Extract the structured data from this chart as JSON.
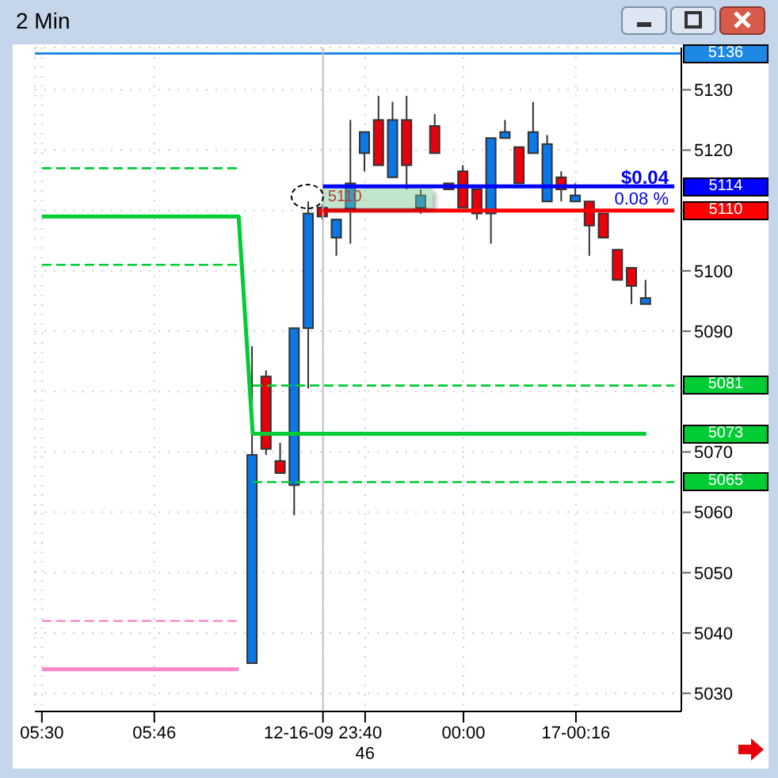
{
  "chart_data": {
    "type": "candlestick",
    "title": "2 Min",
    "categories": [
      "05:30",
      null,
      null,
      null,
      null,
      null,
      null,
      null,
      "05:46",
      null,
      null,
      null,
      null,
      null,
      null,
      null,
      null,
      null,
      null,
      null,
      "12-16-09 23:40",
      null,
      null,
      "46",
      null,
      null,
      null,
      null,
      null,
      null,
      "00:00",
      null,
      null,
      null,
      null,
      null,
      null,
      null,
      "17-00:16",
      null,
      null,
      null,
      null,
      null,
      null,
      null
    ],
    "ohlc": [
      null,
      null,
      null,
      null,
      null,
      null,
      null,
      null,
      null,
      null,
      null,
      null,
      null,
      null,
      null,
      [
        5035,
        5087.5,
        5035,
        5069.5
      ],
      [
        5082.5,
        5083.5,
        5069.5,
        5070.5
      ],
      [
        5068.5,
        5071.5,
        5066.5,
        5066.5
      ],
      [
        5064.5,
        5090.5,
        5059.5,
        5090.5
      ],
      [
        5090.5,
        5111.5,
        5080.5,
        5109.5
      ],
      [
        5110.5,
        5111,
        5108.5,
        5109
      ],
      [
        5105.5,
        5108.5,
        5102.5,
        5108.5
      ],
      [
        5110,
        5125,
        5104.5,
        5114.5
      ],
      [
        5119.5,
        5123,
        5116.5,
        5123
      ],
      [
        5125,
        5129,
        5117.5,
        5117.5
      ],
      [
        5115.5,
        5128,
        5115.5,
        5125
      ],
      [
        5125,
        5129,
        5113.5,
        5117.5
      ],
      [
        5110.5,
        5113.5,
        5109.5,
        5112.5
      ],
      [
        5124,
        5126,
        5119.5,
        5119.5
      ],
      [
        5114.5,
        5114.5,
        5113.5,
        5113.5
      ],
      [
        5116.5,
        5117.5,
        5110.5,
        5110.5
      ],
      [
        5113.5,
        5113.5,
        5108.5,
        5109.5
      ],
      [
        5109.5,
        5122,
        5104.5,
        5122
      ],
      [
        5122,
        5125,
        5122,
        5123
      ],
      [
        5120.5,
        5120.5,
        5114.5,
        5114.5
      ],
      [
        5119.5,
        5128,
        5119.5,
        5123
      ],
      [
        5111.5,
        5122.5,
        5111.5,
        5121
      ],
      [
        5115.5,
        5116.5,
        5111.5,
        5113.5
      ],
      [
        5111.5,
        5114.5,
        5111.5,
        5112.5
      ],
      [
        5111.5,
        5111.5,
        5102.5,
        5107.5
      ],
      [
        5109.5,
        5109.5,
        5105.5,
        5105.5
      ],
      [
        5103.5,
        5103.5,
        5098.5,
        5098.5
      ],
      [
        5100.5,
        5100.5,
        5094.5,
        5097.5
      ],
      [
        5094.5,
        5098.5,
        5094.5,
        5095.5
      ],
      null,
      null
    ],
    "colors": [
      null,
      null,
      null,
      null,
      null,
      null,
      null,
      null,
      null,
      null,
      null,
      null,
      null,
      null,
      null,
      "#0a78e6",
      "#e8000b",
      "#e8000b",
      "#0a78e6",
      "#0a78e6",
      "#e8000b",
      "#0a78e6",
      "#0a78e6",
      "#0a78e6",
      "#e8000b",
      "#0a78e6",
      "#e8000b",
      "#0a78e6",
      "#e8000b",
      "#e8000b",
      "#e8000b",
      "#e8000b",
      "#0a78e6",
      "#0a78e6",
      "#e8000b",
      "#0a78e6",
      "#0a78e6",
      "#e8000b",
      "#0a78e6",
      "#e8000b",
      "#e8000b",
      "#e8000b",
      "#e8000b",
      "#0a78e6",
      null,
      null
    ],
    "series": [
      {
        "type": "line",
        "color": "#00cc33",
        "line_style": "solid",
        "values": [
          5109,
          5109,
          5109,
          5109,
          5109,
          5109,
          5109,
          5109,
          5109,
          5109,
          5109,
          5109,
          5109,
          5109,
          5109,
          5073,
          5073,
          5073,
          5073,
          5073,
          5073,
          5073,
          5073,
          5073,
          5073,
          5073,
          5073,
          5073,
          5073,
          5073,
          5073,
          5073,
          5073,
          5073,
          5073,
          5073,
          5073,
          5073,
          5073,
          5073,
          5073,
          5073,
          5073,
          5073,
          null,
          null
        ]
      },
      {
        "type": "line",
        "color": "#00cc33",
        "line_style": "dashed",
        "values": [
          5117,
          5117,
          5117,
          5117,
          5117,
          5117,
          5117,
          5117,
          5117,
          5117,
          5117,
          5117,
          5117,
          5117,
          5117,
          null,
          null,
          null,
          null,
          null,
          null,
          null,
          null,
          null,
          null,
          null,
          null,
          null,
          null,
          null,
          null,
          null,
          null,
          null,
          null,
          null,
          null,
          null,
          null,
          null,
          null,
          null,
          null,
          null,
          null,
          null
        ]
      },
      {
        "type": "line",
        "color": "#00cc33",
        "line_style": "dashed",
        "values": [
          5101,
          5101,
          5101,
          5101,
          5101,
          5101,
          5101,
          5101,
          5101,
          5101,
          5101,
          5101,
          5101,
          5101,
          5101,
          null,
          null,
          null,
          null,
          null,
          null,
          null,
          null,
          null,
          null,
          null,
          null,
          null,
          null,
          null,
          null,
          null,
          null,
          null,
          null,
          null,
          null,
          null,
          null,
          null,
          null,
          null,
          null,
          null,
          null,
          null
        ]
      },
      {
        "type": "line",
        "color": "#00cc33",
        "line_style": "dashed",
        "values": [
          null,
          null,
          null,
          null,
          null,
          null,
          null,
          null,
          null,
          null,
          null,
          null,
          null,
          null,
          null,
          5081,
          5081,
          5081,
          5081,
          5081,
          5081,
          5081,
          5081,
          5081,
          5081,
          5081,
          5081,
          5081,
          5081,
          5081,
          5081,
          5081,
          5081,
          5081,
          5081,
          5081,
          5081,
          5081,
          5081,
          5081,
          5081,
          5081,
          5081,
          5081,
          5081,
          5081
        ]
      },
      {
        "type": "line",
        "color": "#00cc33",
        "line_style": "dashed",
        "values": [
          null,
          null,
          null,
          null,
          null,
          null,
          null,
          null,
          null,
          null,
          null,
          null,
          null,
          null,
          null,
          5065,
          5065,
          5065,
          5065,
          5065,
          5065,
          5065,
          5065,
          5065,
          5065,
          5065,
          5065,
          5065,
          5065,
          5065,
          5065,
          5065,
          5065,
          5065,
          5065,
          5065,
          5065,
          5065,
          5065,
          5065,
          5065,
          5065,
          5065,
          5065,
          5065,
          5065
        ]
      },
      {
        "type": "line",
        "color": "#ff88cc",
        "line_style": "solid",
        "values": [
          5034,
          5034,
          5034,
          5034,
          5034,
          5034,
          5034,
          5034,
          5034,
          5034,
          5034,
          5034,
          5034,
          5034,
          5034,
          null,
          null,
          null,
          null,
          null,
          null,
          null,
          null,
          null,
          null,
          null,
          null,
          null,
          null,
          null,
          null,
          null,
          null,
          null,
          null,
          null,
          null,
          null,
          null,
          null,
          null,
          null,
          null,
          null,
          null,
          null
        ]
      },
      {
        "type": "line",
        "color": "#ff88cc",
        "line_style": "dashed",
        "values": [
          5042,
          5042,
          5042,
          5042,
          5042,
          5042,
          5042,
          5042,
          5042,
          5042,
          5042,
          5042,
          5042,
          5042,
          5042,
          null,
          null,
          null,
          null,
          null,
          null,
          null,
          null,
          null,
          null,
          null,
          null,
          null,
          null,
          null,
          null,
          null,
          null,
          null,
          null,
          null,
          null,
          null,
          null,
          null,
          null,
          null,
          null,
          null,
          null,
          null
        ]
      },
      {
        "type": "line",
        "color": "#0000ff",
        "line_style": "solid",
        "values": [
          null,
          null,
          null,
          null,
          null,
          null,
          null,
          null,
          null,
          null,
          null,
          null,
          null,
          null,
          null,
          null,
          null,
          null,
          null,
          null,
          5114,
          5114,
          5114,
          5114,
          5114,
          5114,
          5114,
          5114,
          5114,
          5114,
          5114,
          5114,
          5114,
          5114,
          5114,
          5114,
          5114,
          5114,
          5114,
          5114,
          5114,
          5114,
          5114,
          5114,
          5114,
          5114
        ]
      },
      {
        "type": "line",
        "color": "#ff0000",
        "line_style": "solid",
        "values": [
          null,
          null,
          null,
          null,
          null,
          null,
          null,
          null,
          null,
          null,
          null,
          null,
          null,
          null,
          null,
          null,
          null,
          null,
          null,
          null,
          5110,
          5110,
          5110,
          5110,
          5110,
          5110,
          5110,
          5110,
          5110,
          5110,
          5110,
          5110,
          5110,
          5110,
          5110,
          5110,
          5110,
          5110,
          5110,
          5110,
          5110,
          5110,
          5110,
          5110,
          5110,
          5110
        ]
      }
    ],
    "ylim": [
      5027,
      5137
    ],
    "yticks": [
      5030,
      5040,
      5050,
      5060,
      5070,
      {
        "value": 5080,
        "label": null
      },
      5090,
      5100,
      {
        "value": 5110,
        "label": null
      },
      5120,
      5130
    ],
    "grid": true,
    "ref_lines": [
      {
        "axis": "y",
        "value": 5136,
        "label": "5136",
        "color": "#1e88e5"
      },
      {
        "axis": "x",
        "value": "12-16-09 23:40",
        "color": "#c0c0c0"
      }
    ],
    "annotations": [
      "5114",
      "5110",
      "5081",
      "5073",
      "5065",
      {
        "text": "5110",
        "x": "12-16-09 23:40",
        "y": 5110
      },
      "$0.04",
      "0.08 %"
    ]
  }
}
